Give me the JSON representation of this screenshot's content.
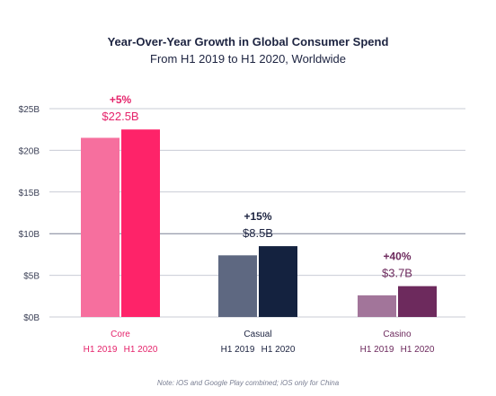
{
  "chart_data": {
    "type": "bar",
    "title": "Year-Over-Year Growth in Global Consumer Spend",
    "subtitle": "From H1 2019 to H1 2020, Worldwide",
    "note": "Note: iOS and Google Play combined; iOS only for China",
    "y_ticks": [
      "$25B",
      "$20B",
      "$15B",
      "$10B",
      "$5B",
      "$0B"
    ],
    "y_tick_values": [
      25,
      20,
      15,
      10,
      5,
      0
    ],
    "ylim": [
      0,
      25
    ],
    "grid": true,
    "categories": [
      "Core",
      "Casual",
      "Casino"
    ],
    "series": [
      {
        "name": "H1 2019",
        "values": [
          21.5,
          7.4,
          2.6
        ]
      },
      {
        "name": "H1 2020",
        "values": [
          22.5,
          8.5,
          3.7
        ]
      }
    ],
    "growth_labels": [
      "+5%",
      "+15%",
      "+40%"
    ],
    "value_labels": [
      "$22.5B",
      "$8.5B",
      "$3.7B"
    ],
    "colors": {
      "Core": [
        "#f66f9e",
        "#fe2369"
      ],
      "Casual": [
        "#5e6881",
        "#14223f"
      ],
      "Casino": [
        "#a2759a",
        "#6d2a5d"
      ]
    },
    "label_colors": {
      "Core": "#e5236b",
      "Casual": "#1c2340",
      "Casino": "#6d2a5d"
    }
  }
}
